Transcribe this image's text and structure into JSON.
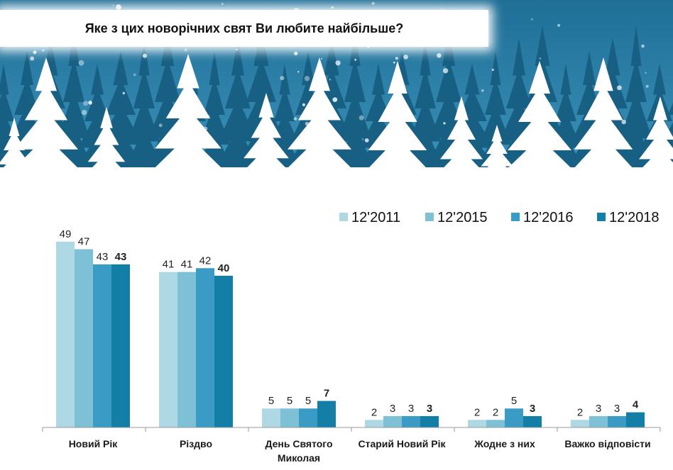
{
  "title": "Яке з цих новорічних свят Ви любите найбільше?",
  "colors": [
    "#add8e4",
    "#7ec0d6",
    "#3a9cc4",
    "#137fa6"
  ],
  "chart_data": {
    "type": "bar",
    "title": "Яке з цих новорічних свят Ви любите найбільше?",
    "categories": [
      [
        "Новий Рік"
      ],
      [
        "Різдво"
      ],
      [
        "День Святого",
        "Миколая"
      ],
      [
        "Старий Новий Рік"
      ],
      [
        "Жодне з них"
      ],
      [
        "Важко відповісти"
      ]
    ],
    "series": [
      {
        "name": "12'2011",
        "values": [
          49,
          41,
          5,
          2,
          2,
          2
        ]
      },
      {
        "name": "12'2015",
        "values": [
          47,
          41,
          5,
          3,
          2,
          3
        ]
      },
      {
        "name": "12'2016",
        "values": [
          43,
          42,
          5,
          3,
          5,
          3
        ]
      },
      {
        "name": "12'2018",
        "values": [
          43,
          40,
          7,
          3,
          3,
          4
        ]
      }
    ],
    "ylim": [
      0,
      50
    ],
    "grid": false,
    "legend": "top-right",
    "value_labels": true
  }
}
